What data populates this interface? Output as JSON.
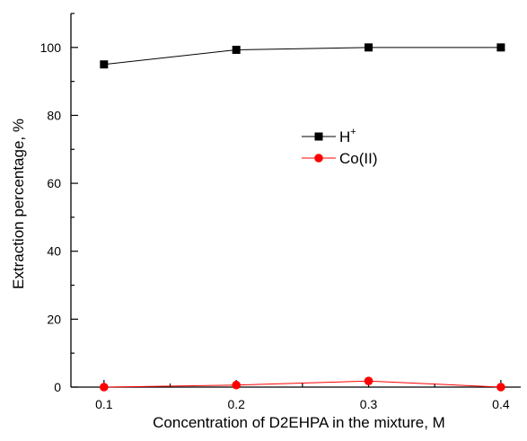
{
  "chart_data": {
    "type": "line",
    "x": [
      0.1,
      0.2,
      0.3,
      0.4
    ],
    "series": [
      {
        "name": "H",
        "name_sup": "+",
        "values": [
          95,
          99.3,
          100,
          100
        ],
        "color": "#000000",
        "marker": "square"
      },
      {
        "name": "Co(II)",
        "values": [
          0,
          0.6,
          1.8,
          0
        ],
        "color": "#ff0000",
        "marker": "circle"
      }
    ],
    "xlabel": "Concentration of D2EHPA in the mixture, M",
    "ylabel": "Extraction percentage, %",
    "xlim": [
      0.075,
      0.415
    ],
    "ylim": [
      0,
      110
    ],
    "xticks": [
      0.1,
      0.2,
      0.3,
      0.4
    ],
    "xtick_labels": [
      "0.1",
      "0.2",
      "0.3",
      "0.4"
    ],
    "yticks": [
      0,
      20,
      40,
      60,
      80,
      100
    ],
    "ytick_labels": [
      "0",
      "20",
      "40",
      "60",
      "80",
      "100"
    ],
    "grid": false,
    "legend_position": "center-right"
  }
}
